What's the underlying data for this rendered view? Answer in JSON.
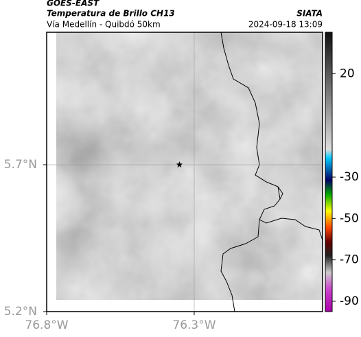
{
  "header": {
    "title": "GOES-EAST",
    "subtitle": "Temperatura de Brillo CH13",
    "route": "Vía Medellín - Quibdó 50km",
    "source": "SIATA",
    "datetime": "2024-09-18 13:09"
  },
  "map": {
    "xlim": [
      -76.8,
      -75.865
    ],
    "ylim": [
      5.2,
      6.151
    ],
    "grid": true,
    "xticks": [
      {
        "value": -76.8,
        "label": "76.8°W"
      },
      {
        "value": -76.3,
        "label": "76.3°W"
      }
    ],
    "yticks": [
      {
        "value": 5.7,
        "label": "5.7°N"
      },
      {
        "value": 5.2,
        "label": "5.2°N"
      }
    ],
    "marker": {
      "lon": -76.35,
      "lat": 5.7
    }
  },
  "colorbar": {
    "clim": [
      -95,
      40
    ],
    "ticks": [
      20,
      -30,
      -50,
      -70,
      -90
    ]
  }
}
